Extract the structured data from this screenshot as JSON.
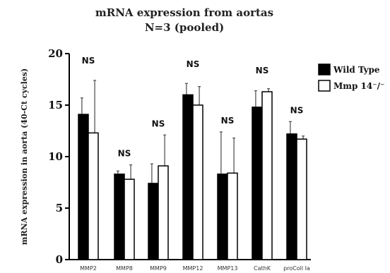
{
  "chart_data": {
    "type": "bar",
    "title": "mRNA expression from aortas",
    "subtitle": "N=3 (pooled)",
    "ylabel": "mRNA expression in aorta (40-Ct cycles)",
    "xlabel": "",
    "ylim": [
      0,
      20
    ],
    "yticks": [
      "0",
      "5",
      "10",
      "15",
      "20"
    ],
    "categories": [
      "MMP2",
      "MMP8",
      "MMP9",
      "MMP12",
      "MMP13",
      "CathK",
      "proColl Ia"
    ],
    "annotations": [
      "NS",
      "NS",
      "NS",
      "NS",
      "NS",
      "NS",
      "NS"
    ],
    "legend_position": "top-right",
    "series": [
      {
        "name": "Wild Type",
        "color": "#000000",
        "values": [
          14.1,
          8.3,
          7.4,
          16.0,
          8.3,
          14.8,
          12.2
        ],
        "error": [
          1.6,
          0.3,
          1.9,
          1.1,
          4.1,
          1.6,
          1.2
        ]
      },
      {
        "name": "Mmp 14⁻/⁻",
        "color": "#ffffff",
        "values": [
          12.3,
          7.8,
          9.1,
          15.0,
          8.4,
          16.3,
          11.7
        ],
        "error": [
          5.1,
          1.4,
          3.0,
          1.8,
          3.4,
          0.3,
          0.3
        ]
      }
    ]
  }
}
